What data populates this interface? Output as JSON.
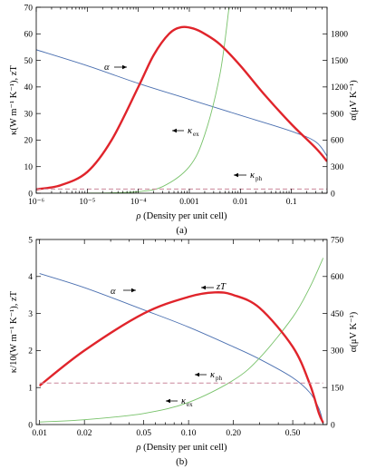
{
  "colors": {
    "alpha": "#4a6fb0",
    "kappa_ex": "#78c26a",
    "zT": "#e0242b",
    "kappa_ph": "#c9869a",
    "frame": "#000000"
  },
  "chart_data": [
    {
      "type": "line",
      "caption": "(a)",
      "x_scale": "log",
      "xlim": [
        1e-06,
        0.5
      ],
      "xticks": [
        "10⁻⁶",
        "10⁻⁵",
        "10⁻⁴",
        "0.001",
        "0.01",
        "0.1"
      ],
      "xtick_values": [
        1e-06,
        1e-05,
        0.0001,
        0.001,
        0.01,
        0.1
      ],
      "xlabel": {
        "var": "ρ",
        "rest": " (Density per unit cell)"
      },
      "ylabel_left": "κ(W m⁻¹ K⁻¹), zT",
      "ylabel_right": "α(μV K⁻¹)",
      "ylim_left": [
        0,
        70
      ],
      "yticks_left": [
        "0",
        "10",
        "20",
        "30",
        "40",
        "50",
        "60",
        "70"
      ],
      "ylim_right": [
        0,
        2100
      ],
      "yticks_right": [
        "0",
        "300",
        "600",
        "900",
        "1200",
        "1500",
        "1800"
      ],
      "series": [
        {
          "key": "alpha",
          "axis": "right",
          "x": [
            1e-06,
            1e-05,
            0.0001,
            0.001,
            0.01,
            0.1,
            0.3,
            0.5
          ],
          "y": [
            1620,
            1440,
            1240,
            1060,
            880,
            700,
            580,
            420
          ]
        },
        {
          "key": "kappa_ex",
          "axis": "left",
          "x": [
            1e-05,
            3e-05,
            0.0001,
            0.0003,
            0.001,
            0.002,
            0.004,
            0.006
          ],
          "y": [
            0.05,
            0.15,
            0.6,
            2.5,
            10,
            22,
            45,
            70
          ]
        },
        {
          "key": "zT",
          "axis": "left",
          "x": [
            1e-06,
            3e-06,
            1e-05,
            3e-05,
            0.0001,
            0.0002,
            0.0004,
            0.0007,
            0.0012,
            0.002,
            0.004,
            0.01,
            0.03,
            0.1,
            0.3,
            0.5
          ],
          "y": [
            1.5,
            3,
            8,
            20,
            40,
            52,
            60,
            62.5,
            62,
            60,
            56,
            48,
            37,
            26,
            17,
            12
          ]
        },
        {
          "key": "kappa_ph",
          "axis": "left",
          "x": [
            1e-06,
            0.5
          ],
          "y": [
            1.6,
            1.6
          ]
        }
      ],
      "annotations": {
        "alpha": {
          "text": "α"
        },
        "kappa_ex": {
          "text": "κ",
          "sub": "ex"
        },
        "kappa_ph": {
          "text": "κ",
          "sub": "ph"
        }
      }
    },
    {
      "type": "line",
      "caption": "(b)",
      "x_scale": "log",
      "xlim": [
        0.0095,
        0.85
      ],
      "xticks": [
        "0.01",
        "0.02",
        "0.05",
        "0.10",
        "0.20",
        "0.50"
      ],
      "xtick_values": [
        0.01,
        0.02,
        0.05,
        0.1,
        0.2,
        0.5
      ],
      "xlabel": {
        "var": "ρ",
        "rest": " (Density per unit cell)"
      },
      "ylabel_left": "κ/10(W m⁻¹ K⁻¹), zT",
      "ylabel_right": "α(μV K⁻¹)",
      "ylim_left": [
        0,
        5
      ],
      "yticks_left": [
        "0",
        "1",
        "2",
        "3",
        "4",
        "5"
      ],
      "ylim_right": [
        0,
        750
      ],
      "yticks_right": [
        "0",
        "150",
        "300",
        "450",
        "600",
        "750"
      ],
      "series": [
        {
          "key": "alpha",
          "axis": "right",
          "x": [
            0.01,
            0.02,
            0.05,
            0.1,
            0.2,
            0.3,
            0.5,
            0.65,
            0.75,
            0.8
          ],
          "y": [
            612,
            555,
            465,
            395,
            315,
            265,
            190,
            130,
            65,
            5
          ]
        },
        {
          "key": "kappa_ex",
          "axis": "left",
          "x": [
            0.01,
            0.02,
            0.05,
            0.1,
            0.2,
            0.3,
            0.5,
            0.65,
            0.8
          ],
          "y": [
            0.07,
            0.13,
            0.3,
            0.6,
            1.2,
            1.8,
            2.9,
            3.7,
            4.5
          ]
        },
        {
          "key": "zT",
          "axis": "left",
          "x": [
            0.01,
            0.02,
            0.05,
            0.1,
            0.15,
            0.2,
            0.3,
            0.5,
            0.65,
            0.75,
            0.8
          ],
          "y": [
            1.05,
            2.0,
            3.0,
            3.45,
            3.57,
            3.5,
            3.15,
            2.1,
            1.1,
            0.3,
            0.05
          ]
        },
        {
          "key": "kappa_ph",
          "axis": "left",
          "x": [
            0.01,
            0.8
          ],
          "y": [
            1.12,
            1.12
          ]
        }
      ],
      "annotations": {
        "alpha": {
          "text": "α"
        },
        "zT": {
          "text": "zT"
        },
        "kappa_ex": {
          "text": "κ",
          "sub": "ex"
        },
        "kappa_ph": {
          "text": "κ",
          "sub": "ph"
        }
      }
    }
  ]
}
